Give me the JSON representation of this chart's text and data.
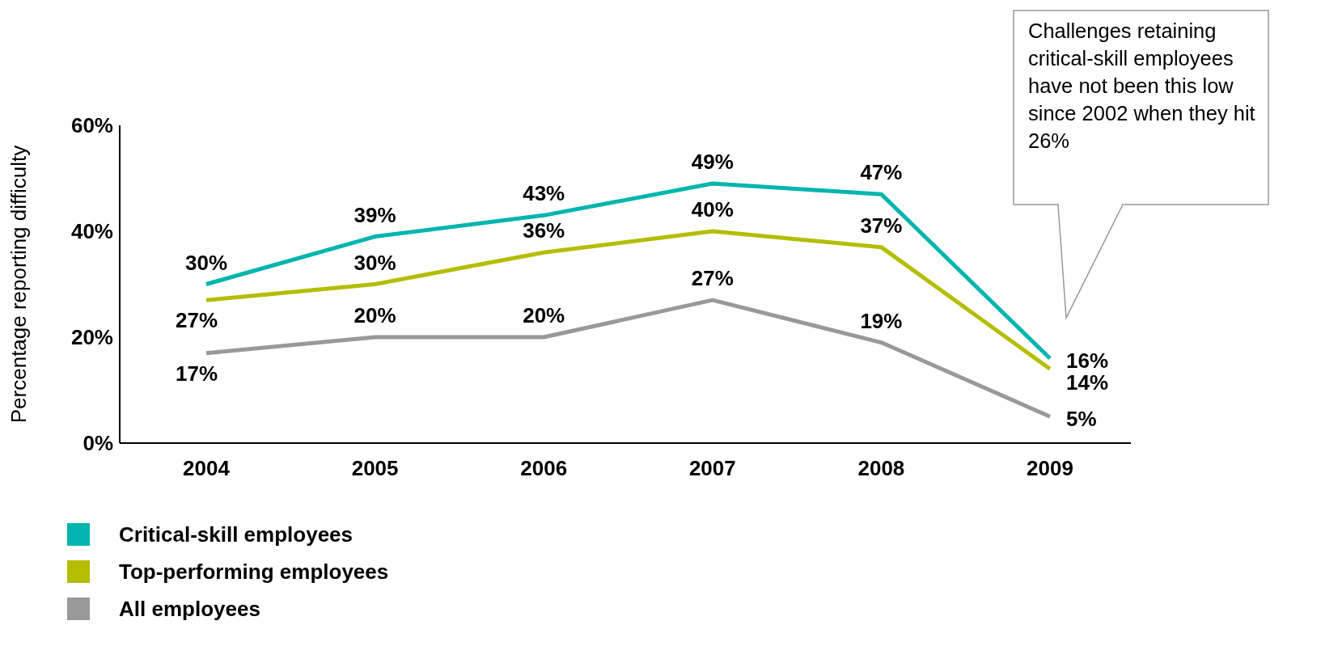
{
  "chart_data": {
    "type": "line",
    "ylabel": "Percentage reporting difficulty",
    "categories": [
      "2004",
      "2005",
      "2006",
      "2007",
      "2008",
      "2009"
    ],
    "series": [
      {
        "name": "Critical-skill employees",
        "color": "#00b5ad",
        "values": [
          30,
          39,
          43,
          49,
          47,
          16
        ],
        "value_labels": [
          "30%",
          "39%",
          "43%",
          "49%",
          "47%",
          "16%"
        ]
      },
      {
        "name": "Top-performing employees",
        "color": "#b5bd00",
        "values": [
          27,
          30,
          36,
          40,
          37,
          14
        ],
        "value_labels": [
          "27%",
          "30%",
          "36%",
          "40%",
          "37%",
          "14%"
        ]
      },
      {
        "name": "All employees",
        "color": "#999999",
        "values": [
          17,
          20,
          20,
          27,
          19,
          5
        ],
        "value_labels": [
          "17%",
          "20%",
          "20%",
          "27%",
          "19%",
          "5%"
        ]
      }
    ],
    "ylim": [
      0,
      60
    ],
    "yticks": [
      {
        "value": 0,
        "label": "0%"
      },
      {
        "value": 20,
        "label": "20%"
      },
      {
        "value": 40,
        "label": "40%"
      },
      {
        "value": 60,
        "label": "60%"
      }
    ],
    "grid": false,
    "legend": "bottom left",
    "marker": "none",
    "line_style": "solid",
    "annotations": [
      "Challenges retaining critical-skill employees have not been this low since 2002 when they hit 26%"
    ]
  }
}
